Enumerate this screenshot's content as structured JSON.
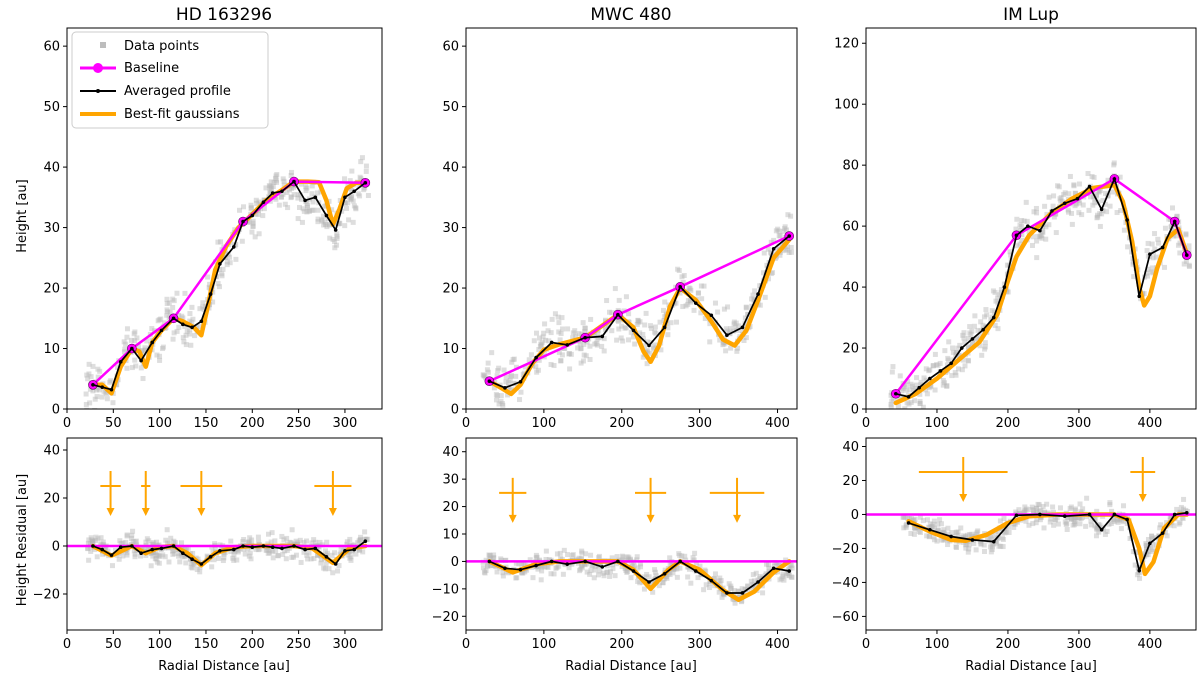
{
  "figure": {
    "titles": [
      "HD 163296",
      "MWC 480",
      "IM Lup"
    ],
    "ylabel_top": "Height [au]",
    "ylabel_bottom": "Height Residual [au]",
    "xlabel": "Radial Distance [au]"
  },
  "legend": {
    "position": "top-left of first panel",
    "entries": [
      {
        "label": "Data points",
        "color": "#bdbdbd"
      },
      {
        "label": "Baseline",
        "color": "#ff00ff"
      },
      {
        "label": "Averaged profile",
        "color": "#000000"
      },
      {
        "label": "Best-fit gaussians",
        "color": "#ffa500"
      }
    ]
  },
  "colors": {
    "baseline": "#ff00ff",
    "profile": "#000000",
    "gaussian": "#ffa500",
    "points": "#b5b5b5"
  },
  "chart_data": [
    {
      "type": "line",
      "panel": "top-left",
      "title": "HD 163296",
      "ylabel": "Height [au]",
      "xlim": [
        0,
        340
      ],
      "ylim": [
        0,
        63
      ],
      "xticks": [
        0,
        50,
        100,
        150,
        200,
        250,
        300
      ],
      "yticks": [
        0,
        10,
        20,
        30,
        40,
        50,
        60
      ],
      "series": [
        {
          "name": "Baseline",
          "x": [
            28,
            70,
            115,
            190,
            245,
            322
          ],
          "y": [
            4,
            10,
            15,
            31,
            37.6,
            37.4
          ]
        },
        {
          "name": "Averaged profile",
          "x": [
            28,
            38,
            48,
            58,
            70,
            80,
            92,
            102,
            115,
            125,
            135,
            145,
            155,
            165,
            180,
            190,
            200,
            212,
            222,
            232,
            245,
            257,
            268,
            280,
            290,
            300,
            310,
            322
          ],
          "y": [
            4,
            3.6,
            3.2,
            7.8,
            10,
            8,
            11,
            13,
            15,
            14,
            13.5,
            14.5,
            19,
            24,
            26.8,
            31,
            32,
            34.2,
            35.7,
            36,
            37.6,
            34.5,
            35,
            32,
            29.6,
            35,
            36,
            37.4
          ]
        },
        {
          "name": "Best-fit gaussians",
          "x": [
            28,
            38,
            48,
            58,
            70,
            78,
            85,
            92,
            102,
            115,
            125,
            137,
            145,
            152,
            160,
            172,
            185,
            200,
            215,
            230,
            245,
            260,
            272,
            280,
            287,
            294,
            302,
            312,
            322
          ],
          "y": [
            4,
            4,
            2.6,
            7,
            10,
            9.5,
            7,
            11,
            13,
            15,
            14.5,
            13.5,
            12.2,
            17,
            23,
            27,
            30,
            32.2,
            34.5,
            36,
            37.6,
            37.6,
            37.5,
            34.5,
            30.5,
            33,
            36.5,
            37.4,
            37.4
          ]
        }
      ]
    },
    {
      "type": "line",
      "panel": "top-middle",
      "title": "MWC 480",
      "xlim": [
        0,
        425
      ],
      "ylim": [
        0,
        63
      ],
      "xticks": [
        0,
        100,
        200,
        300,
        400
      ],
      "yticks": [
        0,
        10,
        20,
        30,
        40,
        50,
        60
      ],
      "series": [
        {
          "name": "Baseline",
          "x": [
            30,
            153,
            195,
            275,
            415
          ],
          "y": [
            4.6,
            11.8,
            15.6,
            20.2,
            28.6
          ]
        },
        {
          "name": "Averaged profile",
          "x": [
            30,
            50,
            70,
            90,
            110,
            130,
            153,
            175,
            195,
            215,
            235,
            255,
            275,
            295,
            315,
            335,
            355,
            375,
            395,
            415
          ],
          "y": [
            4.6,
            3.5,
            4.5,
            8.5,
            11,
            10.6,
            11.8,
            12,
            15.6,
            13,
            10.5,
            13.5,
            20.2,
            17.5,
            15.5,
            12.2,
            13.5,
            19,
            26.5,
            28.6
          ]
        },
        {
          "name": "Best-fit gaussians",
          "x": [
            30,
            45,
            58,
            70,
            85,
            100,
            120,
            153,
            195,
            215,
            228,
            237,
            248,
            262,
            275,
            295,
            315,
            330,
            345,
            360,
            375,
            395,
            415
          ],
          "y": [
            4.6,
            3.5,
            2.5,
            4,
            7.5,
            9.8,
            10.7,
            11.8,
            15.6,
            13.5,
            9.5,
            7.8,
            10.5,
            17,
            20,
            18,
            14.5,
            11.5,
            10.5,
            13,
            18,
            25,
            28
          ]
        }
      ]
    },
    {
      "type": "line",
      "panel": "top-right",
      "title": "IM Lup",
      "xlim": [
        0,
        465
      ],
      "ylim": [
        0,
        125
      ],
      "xticks": [
        0,
        100,
        200,
        300,
        400
      ],
      "yticks": [
        0,
        20,
        40,
        60,
        80,
        100,
        120
      ],
      "series": [
        {
          "name": "Baseline",
          "x": [
            42,
            212,
            350,
            435,
            452
          ],
          "y": [
            5,
            57,
            75.5,
            61.5,
            50.5
          ]
        },
        {
          "name": "Averaged profile",
          "x": [
            42,
            60,
            75,
            90,
            105,
            120,
            135,
            150,
            165,
            180,
            195,
            212,
            228,
            245,
            262,
            280,
            298,
            315,
            332,
            350,
            368,
            385,
            400,
            418,
            435,
            452
          ],
          "y": [
            5,
            4,
            7,
            10,
            12.5,
            15,
            20,
            23,
            26,
            30,
            40,
            57,
            60,
            58.5,
            65,
            67.5,
            69,
            73,
            65.5,
            75.5,
            62,
            37,
            50.8,
            53,
            61.5,
            50.5
          ]
        },
        {
          "name": "Best-fit gaussians",
          "x": [
            42,
            70,
            100,
            130,
            160,
            185,
            200,
            212,
            230,
            260,
            290,
            320,
            350,
            362,
            375,
            385,
            392,
            400,
            410,
            425,
            440,
            452
          ],
          "y": [
            2,
            5,
            10,
            16,
            22,
            31,
            42,
            50,
            57,
            64,
            69,
            72.5,
            73.5,
            68,
            55,
            40,
            34,
            37,
            46,
            56,
            59,
            51
          ]
        }
      ]
    },
    {
      "type": "line",
      "panel": "bottom-left",
      "ylabel": "Height Residual [au]",
      "xlabel": "Radial Distance [au]",
      "xlim": [
        0,
        340
      ],
      "ylim": [
        -35,
        45
      ],
      "xticks": [
        0,
        50,
        100,
        150,
        200,
        250,
        300
      ],
      "yticks": [
        -20,
        0,
        20,
        40
      ],
      "series": [
        {
          "name": "Baseline",
          "x": [
            0,
            340
          ],
          "y": [
            0,
            0
          ]
        },
        {
          "name": "Averaged profile",
          "x": [
            28,
            38,
            48,
            58,
            70,
            80,
            92,
            102,
            115,
            125,
            135,
            145,
            155,
            165,
            180,
            190,
            200,
            212,
            222,
            232,
            245,
            257,
            268,
            280,
            290,
            300,
            310,
            322
          ],
          "y": [
            0,
            -1.5,
            -3.8,
            -0.5,
            0,
            -3,
            -1.5,
            -1,
            0,
            -3,
            -5.5,
            -7.5,
            -4.5,
            -2,
            -1.5,
            0,
            -0.5,
            0,
            -0.5,
            -1,
            0,
            -1.5,
            -1,
            -4.5,
            -7.5,
            -2,
            -1.5,
            2
          ]
        },
        {
          "name": "Best-fit gaussians",
          "x": [
            28,
            48,
            70,
            85,
            100,
            115,
            130,
            145,
            160,
            180,
            200,
            245,
            265,
            287,
            305,
            322
          ],
          "y": [
            0,
            -4,
            0,
            -3,
            -0.5,
            0,
            -3,
            -8,
            -3,
            -0.5,
            0,
            0,
            -1,
            -7,
            -1,
            0
          ]
        }
      ],
      "markers": [
        {
          "x": 47,
          "y_center": 25,
          "width": 22,
          "height": 28,
          "arrow_to": -3
        },
        {
          "x": 85,
          "y_center": 25,
          "width": 10,
          "height": 28,
          "arrow_to": -3
        },
        {
          "x": 145,
          "y_center": 25,
          "width": 45,
          "height": 28,
          "arrow_to": -3
        },
        {
          "x": 287,
          "y_center": 25,
          "width": 40,
          "height": 28,
          "arrow_to": -3
        }
      ]
    },
    {
      "type": "line",
      "panel": "bottom-middle",
      "xlabel": "Radial Distance [au]",
      "xlim": [
        0,
        425
      ],
      "ylim": [
        -25,
        45
      ],
      "xticks": [
        0,
        100,
        200,
        300,
        400
      ],
      "yticks": [
        -20,
        -10,
        0,
        10,
        20,
        30,
        40
      ],
      "series": [
        {
          "name": "Baseline",
          "x": [
            0,
            425
          ],
          "y": [
            0,
            0
          ]
        },
        {
          "name": "Averaged profile",
          "x": [
            30,
            50,
            70,
            90,
            110,
            130,
            153,
            175,
            195,
            215,
            235,
            255,
            275,
            295,
            315,
            335,
            355,
            375,
            395,
            415
          ],
          "y": [
            0,
            -2.5,
            -3,
            -1.5,
            0,
            -1,
            0,
            -2,
            0,
            -3.5,
            -7.5,
            -4.5,
            0,
            -3.5,
            -7,
            -11.5,
            -11.5,
            -7.5,
            -2.5,
            -3.5
          ]
        },
        {
          "name": "Best-fit gaussians",
          "x": [
            30,
            60,
            90,
            120,
            153,
            195,
            215,
            237,
            260,
            275,
            300,
            330,
            350,
            370,
            395,
            415
          ],
          "y": [
            0,
            -4,
            -1,
            0,
            0,
            0,
            -3,
            -10,
            -3,
            0,
            -3,
            -10.5,
            -14,
            -11,
            -4,
            0
          ]
        }
      ],
      "markers": [
        {
          "x": 60,
          "y_center": 25,
          "width": 35,
          "height": 28,
          "arrow_to": -4
        },
        {
          "x": 237,
          "y_center": 25,
          "width": 40,
          "height": 28,
          "arrow_to": -4
        },
        {
          "x": 348,
          "y_center": 25,
          "width": 70,
          "height": 28,
          "arrow_to": -4
        }
      ]
    },
    {
      "type": "line",
      "panel": "bottom-right",
      "xlabel": "Radial Distance [au]",
      "xlim": [
        0,
        465
      ],
      "ylim": [
        -68,
        45
      ],
      "xticks": [
        0,
        100,
        200,
        300,
        400
      ],
      "yticks": [
        -60,
        -40,
        -20,
        0,
        20,
        40
      ],
      "series": [
        {
          "name": "Baseline",
          "x": [
            0,
            465
          ],
          "y": [
            0,
            0
          ]
        },
        {
          "name": "Averaged profile",
          "x": [
            60,
            90,
            120,
            150,
            180,
            212,
            245,
            280,
            315,
            332,
            350,
            368,
            385,
            400,
            418,
            435,
            452
          ],
          "y": [
            -5,
            -9,
            -13,
            -15,
            -16,
            -0.5,
            0,
            -1,
            0,
            -9,
            0,
            -3,
            -33,
            -17,
            -11,
            0,
            1
          ]
        },
        {
          "name": "Best-fit gaussians",
          "x": [
            60,
            90,
            120,
            140,
            170,
            200,
            230,
            270,
            350,
            370,
            385,
            393,
            405,
            420,
            440,
            452
          ],
          "y": [
            -4,
            -10,
            -15,
            -15.5,
            -12,
            -5,
            -1,
            0,
            0,
            -3,
            -20,
            -35,
            -28,
            -8,
            0,
            0
          ]
        }
      ],
      "markers": [
        {
          "x": 137,
          "y_center": 25,
          "width": 125,
          "height": 28,
          "arrow_to": -4
        },
        {
          "x": 390,
          "y_center": 25,
          "width": 35,
          "height": 28,
          "arrow_to": -4
        }
      ]
    }
  ]
}
